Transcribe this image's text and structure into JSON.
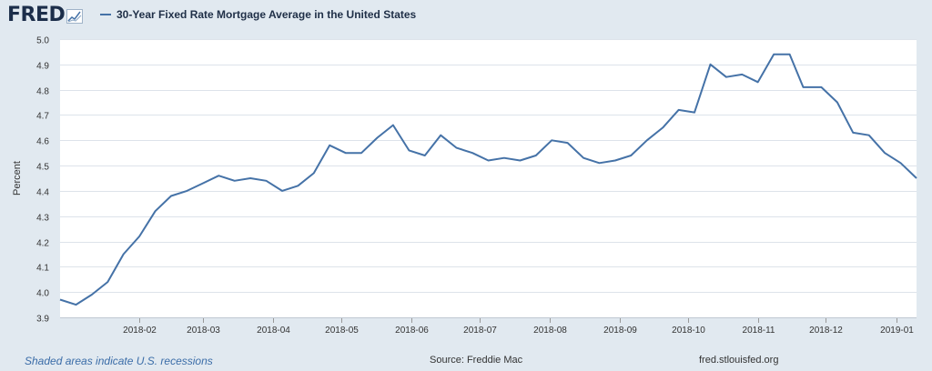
{
  "header": {
    "logo_text": "FRED",
    "logo_icon": "line-chart-icon",
    "legend_label": "30-Year Fixed Rate Mortgage Average in the United States"
  },
  "footer": {
    "recessions_note": "Shaded areas indicate U.S. recessions",
    "source": "Source: Freddie Mac",
    "site": "fred.stlouisfed.org"
  },
  "colors": {
    "background": "#e1e9f0",
    "plot_background": "#ffffff",
    "series": "#4572a7",
    "grid": "#dde3ea"
  },
  "chart_data": {
    "type": "line",
    "title": "",
    "xlabel": "",
    "ylabel": "Percent",
    "ylim": [
      3.9,
      5.0
    ],
    "yticks": [
      "3.9",
      "4.0",
      "4.1",
      "4.2",
      "4.3",
      "4.4",
      "4.5",
      "4.6",
      "4.7",
      "4.8",
      "4.9",
      "5.0"
    ],
    "xticks": [
      "2018-02",
      "2018-03",
      "2018-04",
      "2018-05",
      "2018-06",
      "2018-07",
      "2018-08",
      "2018-09",
      "2018-10",
      "2018-11",
      "2018-12",
      "2019-01"
    ],
    "grid": true,
    "legend": "top-left",
    "series": [
      {
        "name": "30-Year Fixed Rate Mortgage Average in the United States",
        "x": [
          "2017-12-28",
          "2018-01-04",
          "2018-01-11",
          "2018-01-18",
          "2018-01-25",
          "2018-02-01",
          "2018-02-08",
          "2018-02-15",
          "2018-02-22",
          "2018-03-01",
          "2018-03-08",
          "2018-03-15",
          "2018-03-22",
          "2018-03-29",
          "2018-04-05",
          "2018-04-12",
          "2018-04-19",
          "2018-04-26",
          "2018-05-03",
          "2018-05-10",
          "2018-05-17",
          "2018-05-24",
          "2018-05-31",
          "2018-06-07",
          "2018-06-14",
          "2018-06-21",
          "2018-06-28",
          "2018-07-05",
          "2018-07-12",
          "2018-07-19",
          "2018-07-26",
          "2018-08-02",
          "2018-08-09",
          "2018-08-16",
          "2018-08-23",
          "2018-08-30",
          "2018-09-06",
          "2018-09-13",
          "2018-09-20",
          "2018-09-27",
          "2018-10-04",
          "2018-10-11",
          "2018-10-18",
          "2018-10-25",
          "2018-11-01",
          "2018-11-08",
          "2018-11-15",
          "2018-11-21",
          "2018-11-29",
          "2018-12-06",
          "2018-12-13",
          "2018-12-20",
          "2018-12-27",
          "2019-01-03",
          "2019-01-10"
        ],
        "values": [
          3.97,
          3.95,
          3.99,
          4.04,
          4.15,
          4.22,
          4.32,
          4.38,
          4.4,
          4.43,
          4.46,
          4.44,
          4.45,
          4.44,
          4.4,
          4.42,
          4.47,
          4.58,
          4.55,
          4.55,
          4.61,
          4.66,
          4.56,
          4.54,
          4.62,
          4.57,
          4.55,
          4.52,
          4.53,
          4.52,
          4.54,
          4.6,
          4.59,
          4.53,
          4.51,
          4.52,
          4.54,
          4.6,
          4.65,
          4.72,
          4.71,
          4.9,
          4.85,
          4.86,
          4.83,
          4.94,
          4.94,
          4.81,
          4.81,
          4.75,
          4.63,
          4.62,
          4.55,
          4.51,
          4.45
        ]
      }
    ]
  }
}
